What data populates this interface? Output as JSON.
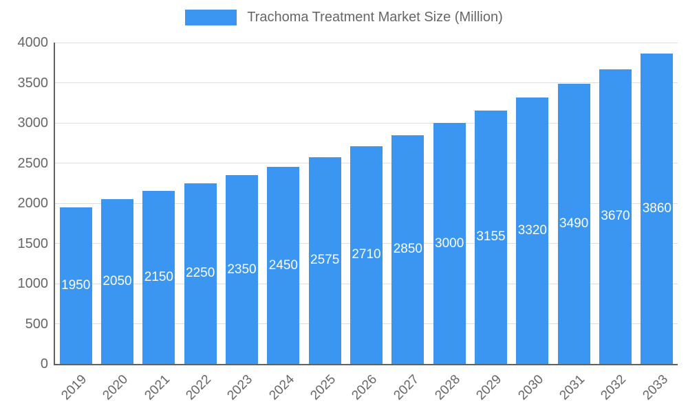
{
  "legend": {
    "label": "Trachoma Treatment Market Size (Million)"
  },
  "chart_data": {
    "type": "bar",
    "title": "Trachoma Treatment Market Size (Million)",
    "categories": [
      "2019",
      "2020",
      "2021",
      "2022",
      "2023",
      "2024",
      "2025",
      "2026",
      "2027",
      "2028",
      "2029",
      "2030",
      "2031",
      "2032",
      "2033"
    ],
    "values": [
      1950,
      2050,
      2150,
      2250,
      2350,
      2450,
      2575,
      2710,
      2850,
      3000,
      3155,
      3320,
      3490,
      3670,
      3860
    ],
    "xlabel": "",
    "ylabel": "",
    "ylim": [
      0,
      4000
    ],
    "yticks": [
      0,
      500,
      1000,
      1500,
      2000,
      2500,
      3000,
      3500,
      4000
    ],
    "grid": true,
    "legend_position": "top",
    "bar_color": "#3b96f2",
    "bar_label_color": "#ffffff",
    "axis_text_color": "#666666",
    "grid_color": "#dddddd",
    "axis_line_color": "#616161"
  }
}
